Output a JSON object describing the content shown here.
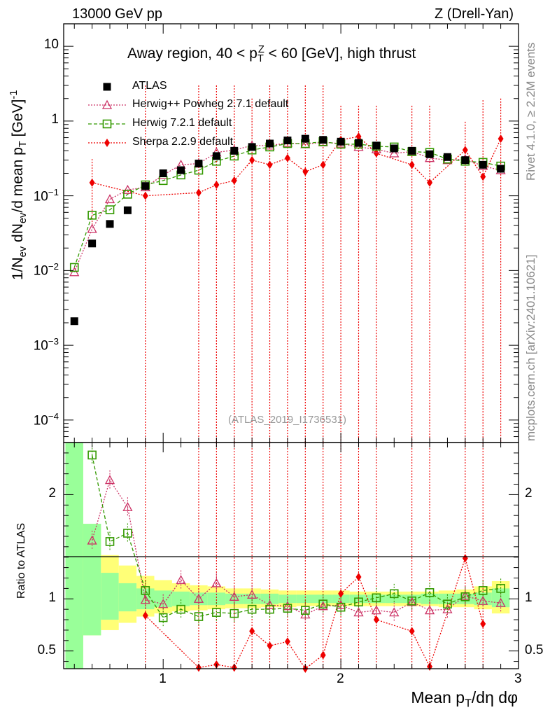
{
  "header": {
    "left": "13000 GeV pp",
    "right": "Z (Drell-Yan)"
  },
  "side_labels": {
    "rivet": "Rivet 4.1.0, ≥ 2.2M events",
    "mcplots": "mcplots.cern.ch [arXiv:2401.10621]"
  },
  "chart_data": {
    "type": "scatter",
    "title": "Away region, 40 < p_T^Z < 60 [GeV], high thrust",
    "title_parts": {
      "pre": "Away region, 40 < p",
      "sub": "T",
      "sup": "Z",
      "post": " < 60 [GeV], high thrust"
    },
    "analysis_id": "(ATLAS_2019_I1736531)",
    "xlabel": "Mean p_T/dη dφ",
    "xlabel_parts": {
      "pre": "Mean p",
      "sub": "T",
      "post": "/dη dφ"
    },
    "ylabel": "1/N_ev dN_ev/d mean p_T [GeV]^-1",
    "ratio_ylabel": "Ratio to ATLAS",
    "xlim": [
      0.44,
      3.0
    ],
    "ylim": [
      5e-05,
      20
    ],
    "yscale": "log",
    "ratio_ylim": [
      0.33,
      2.5
    ],
    "x_ticks": [
      {
        "value": 1,
        "label": "1"
      },
      {
        "value": 2,
        "label": "2"
      },
      {
        "value": 3,
        "label": "3"
      }
    ],
    "y_ticks": [
      {
        "value": 0.0001,
        "mant": "10",
        "exp": "−4"
      },
      {
        "value": 0.001,
        "mant": "10",
        "exp": "−3"
      },
      {
        "value": 0.01,
        "mant": "10",
        "exp": "−2"
      },
      {
        "value": 0.1,
        "mant": "10",
        "exp": "−1"
      },
      {
        "value": 1,
        "mant": "1",
        "exp": ""
      },
      {
        "value": 10,
        "mant": "10",
        "exp": ""
      }
    ],
    "ratio_ticks": [
      {
        "value": 0.5,
        "label": "0.5"
      },
      {
        "value": 1,
        "label": "1"
      },
      {
        "value": 2,
        "label": "2"
      }
    ],
    "x": [
      0.5,
      0.6,
      0.7,
      0.8,
      0.9,
      1.0,
      1.1,
      1.2,
      1.3,
      1.4,
      1.5,
      1.6,
      1.7,
      1.8,
      1.9,
      2.0,
      2.1,
      2.2,
      2.3,
      2.4,
      2.5,
      2.6,
      2.7,
      2.8,
      2.9
    ],
    "bin_edges": [
      0.45,
      0.55,
      0.65,
      0.75,
      0.85,
      0.95,
      1.05,
      1.15,
      1.25,
      1.35,
      1.45,
      1.55,
      1.65,
      1.75,
      1.85,
      1.95,
      2.05,
      2.15,
      2.25,
      2.35,
      2.45,
      2.55,
      2.65,
      2.75,
      2.85,
      2.95
    ],
    "atlas_band_stat": [
      [
        0.3,
        2.5
      ],
      [
        0.65,
        1.72
      ],
      [
        0.8,
        1.25
      ],
      [
        0.88,
        1.15
      ],
      [
        0.9,
        1.1
      ],
      [
        0.92,
        1.08
      ],
      [
        0.93,
        1.07
      ],
      [
        0.94,
        1.06
      ],
      [
        0.94,
        1.06
      ],
      [
        0.95,
        1.05
      ],
      [
        0.95,
        1.05
      ],
      [
        0.95,
        1.05
      ],
      [
        0.96,
        1.04
      ],
      [
        0.96,
        1.04
      ],
      [
        0.96,
        1.04
      ],
      [
        0.96,
        1.04
      ],
      [
        0.96,
        1.04
      ],
      [
        0.96,
        1.04
      ],
      [
        0.96,
        1.04
      ],
      [
        0.96,
        1.04
      ],
      [
        0.95,
        1.05
      ],
      [
        0.95,
        1.05
      ],
      [
        0.95,
        1.05
      ],
      [
        0.94,
        1.06
      ],
      [
        0.92,
        1.1
      ]
    ],
    "atlas_band_total": [
      [
        0.3,
        2.5
      ],
      [
        0.65,
        1.72
      ],
      [
        0.7,
        1.42
      ],
      [
        0.77,
        1.32
      ],
      [
        0.83,
        1.22
      ],
      [
        0.86,
        1.18
      ],
      [
        0.88,
        1.15
      ],
      [
        0.89,
        1.13
      ],
      [
        0.9,
        1.12
      ],
      [
        0.91,
        1.1
      ],
      [
        0.91,
        1.1
      ],
      [
        0.92,
        1.09
      ],
      [
        0.92,
        1.08
      ],
      [
        0.93,
        1.08
      ],
      [
        0.93,
        1.08
      ],
      [
        0.93,
        1.08
      ],
      [
        0.93,
        1.07
      ],
      [
        0.93,
        1.07
      ],
      [
        0.93,
        1.07
      ],
      [
        0.93,
        1.07
      ],
      [
        0.93,
        1.07
      ],
      [
        0.92,
        1.08
      ],
      [
        0.92,
        1.09
      ],
      [
        0.9,
        1.12
      ],
      [
        0.86,
        1.17
      ]
    ],
    "series": [
      {
        "name": "ATLAS",
        "color": "#000000",
        "marker": "square-filled",
        "values": [
          0.0021,
          0.023,
          0.042,
          0.064,
          0.135,
          0.2,
          0.22,
          0.27,
          0.34,
          0.4,
          0.45,
          0.5,
          0.55,
          0.58,
          0.56,
          0.53,
          0.51,
          0.47,
          0.43,
          0.4,
          0.36,
          0.33,
          0.3,
          0.26,
          0.23
        ]
      },
      {
        "name": "Herwig++ Powheg 2.7.1 default",
        "color": "#cc3366",
        "marker": "triangle-open",
        "line": "dotted",
        "values": [
          0.0095,
          0.036,
          0.09,
          0.12,
          0.13,
          0.19,
          0.26,
          0.27,
          0.38,
          0.41,
          0.47,
          0.47,
          0.51,
          0.49,
          0.52,
          0.5,
          0.45,
          0.42,
          0.37,
          0.39,
          0.32,
          0.3,
          0.31,
          0.25,
          0.22
        ]
      },
      {
        "name": "Herwig 7.2.1 default",
        "color": "#339900",
        "marker": "square-open",
        "line": "dashed",
        "values": [
          0.011,
          0.055,
          0.065,
          0.105,
          0.14,
          0.16,
          0.19,
          0.22,
          0.29,
          0.34,
          0.41,
          0.45,
          0.5,
          0.5,
          0.53,
          0.49,
          0.49,
          0.46,
          0.45,
          0.39,
          0.38,
          0.31,
          0.29,
          0.28,
          0.25
        ]
      },
      {
        "name": "Sherpa 2.2.9 default",
        "color": "#ee0000",
        "marker": "diamond-filled",
        "line": "dotted",
        "values": [
          null,
          0.15,
          null,
          null,
          0.1,
          null,
          null,
          0.11,
          0.14,
          0.16,
          0.3,
          0.26,
          0.32,
          0.21,
          0.26,
          0.56,
          0.62,
          0.37,
          null,
          0.26,
          0.15,
          null,
          0.41,
          0.18,
          0.58
        ],
        "err_up": [
          null,
          0.31,
          null,
          null,
          3.0,
          null,
          null,
          3.0,
          3.0,
          3.0,
          2.0,
          3.0,
          3.0,
          3.0,
          3.0,
          1.6,
          1.6,
          1.6,
          null,
          1.6,
          1.6,
          null,
          0.98,
          1.9,
          2.0
        ],
        "err_down": [
          null,
          0.04,
          null,
          null,
          5e-05,
          null,
          null,
          5e-05,
          5e-05,
          5e-05,
          5e-05,
          5e-05,
          5e-05,
          5e-05,
          5e-05,
          5e-05,
          5e-05,
          5e-05,
          null,
          5e-05,
          5e-05,
          null,
          5e-05,
          5e-05,
          5e-05
        ]
      }
    ],
    "ratio_series": [
      {
        "name": "Herwig++ Powheg 2.7.1 default",
        "x": [
          0.6,
          0.7,
          0.8,
          0.9,
          1.0,
          1.1,
          1.2,
          1.3,
          1.4,
          1.5,
          1.6,
          1.7,
          1.8,
          1.9,
          2.0,
          2.1,
          2.2,
          2.3,
          2.4,
          2.5,
          2.6,
          2.7,
          2.8,
          2.9
        ],
        "values": [
          1.56,
          2.14,
          1.88,
          0.99,
          0.95,
          1.18,
          1.0,
          1.15,
          1.02,
          1.04,
          0.94,
          0.93,
          0.85,
          0.93,
          0.94,
          0.87,
          0.89,
          0.87,
          0.97,
          0.89,
          0.9,
          1.03,
          0.98,
          0.96
        ]
      },
      {
        "name": "Herwig 7.2.1 default",
        "x": [
          0.6,
          0.7,
          0.8,
          0.9,
          1.0,
          1.1,
          1.2,
          1.3,
          1.4,
          1.5,
          1.6,
          1.7,
          1.8,
          1.9,
          2.0,
          2.1,
          2.2,
          2.3,
          2.4,
          2.5,
          2.6,
          2.7,
          2.8,
          2.9
        ],
        "values": [
          2.38,
          1.55,
          1.63,
          1.08,
          0.82,
          0.9,
          0.83,
          0.87,
          0.86,
          0.9,
          0.9,
          0.91,
          0.89,
          0.95,
          0.92,
          0.97,
          1.01,
          1.05,
          0.98,
          1.06,
          0.95,
          1.02,
          1.08,
          1.1
        ]
      },
      {
        "name": "Sherpa 2.2.9 default",
        "x": [
          0.9,
          1.2,
          1.3,
          1.4,
          1.5,
          1.6,
          1.7,
          1.8,
          1.9,
          2.0,
          2.1,
          2.2,
          2.4,
          2.5,
          2.7,
          2.8
        ],
        "values": [
          0.84,
          0.34,
          0.37,
          0.34,
          0.69,
          0.55,
          0.59,
          0.33,
          0.46,
          1.05,
          1.21,
          0.8,
          0.69,
          0.35,
          1.39,
          0.76
        ]
      }
    ]
  }
}
